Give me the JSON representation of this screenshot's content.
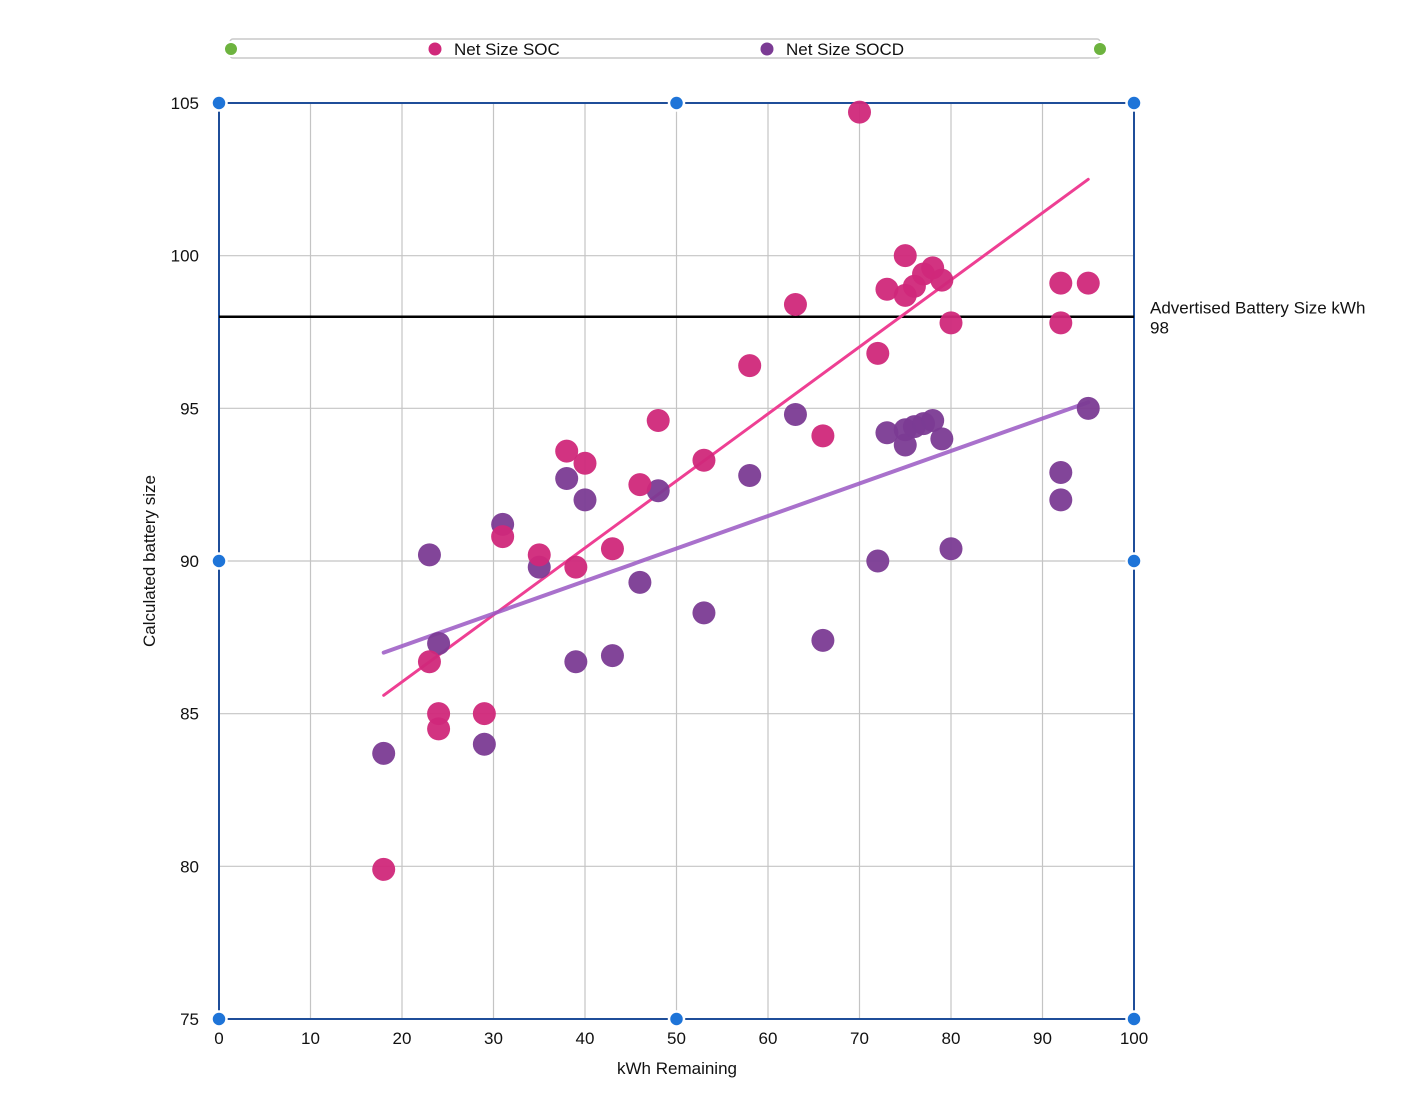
{
  "legend": {
    "items": [
      {
        "label": "Net Size SOC",
        "color": "#d0287a"
      },
      {
        "label": "Net Size SOCD",
        "color": "#7b3b94"
      }
    ],
    "handle_color": "#6db33f"
  },
  "selection_handle_color": "#1e74d8",
  "chart_data": {
    "type": "scatter",
    "title": "",
    "xlabel": "kWh Remaining",
    "ylabel": "Calculated battery size",
    "xlim": [
      0,
      100
    ],
    "ylim": [
      75,
      105
    ],
    "xticks": [
      0,
      10,
      20,
      30,
      40,
      50,
      60,
      70,
      80,
      90,
      100
    ],
    "yticks": [
      75,
      80,
      85,
      90,
      95,
      100,
      105
    ],
    "grid": "vertical-and-horizontal",
    "legend_position": "top",
    "series": [
      {
        "name": "Net Size SOC",
        "color": "#d0287a",
        "points": [
          [
            18,
            79.9
          ],
          [
            23,
            86.7
          ],
          [
            24,
            85.0
          ],
          [
            24,
            84.5
          ],
          [
            29,
            85.0
          ],
          [
            31,
            90.8
          ],
          [
            35,
            90.2
          ],
          [
            38,
            93.6
          ],
          [
            39,
            89.8
          ],
          [
            40,
            93.2
          ],
          [
            43,
            90.4
          ],
          [
            46,
            92.5
          ],
          [
            48,
            94.6
          ],
          [
            53,
            93.3
          ],
          [
            58,
            96.4
          ],
          [
            63,
            98.4
          ],
          [
            66,
            94.1
          ],
          [
            70,
            104.7
          ],
          [
            72,
            96.8
          ],
          [
            73,
            98.9
          ],
          [
            75,
            100.0
          ],
          [
            75,
            98.7
          ],
          [
            76,
            99.0
          ],
          [
            77,
            99.4
          ],
          [
            78,
            99.6
          ],
          [
            79,
            99.2
          ],
          [
            80,
            97.8
          ],
          [
            92,
            99.1
          ],
          [
            92,
            97.8
          ],
          [
            95,
            99.1
          ]
        ],
        "trendline": {
          "x": [
            18,
            95
          ],
          "y": [
            85.6,
            102.5
          ],
          "color": "#ee3f93"
        }
      },
      {
        "name": "Net Size SOCD",
        "color": "#7b3b94",
        "points": [
          [
            18,
            83.7
          ],
          [
            23,
            90.2
          ],
          [
            24,
            87.3
          ],
          [
            29,
            84.0
          ],
          [
            31,
            91.2
          ],
          [
            35,
            89.8
          ],
          [
            38,
            92.7
          ],
          [
            39,
            86.7
          ],
          [
            40,
            92.0
          ],
          [
            43,
            86.9
          ],
          [
            46,
            89.3
          ],
          [
            48,
            92.3
          ],
          [
            53,
            88.3
          ],
          [
            58,
            92.8
          ],
          [
            63,
            94.8
          ],
          [
            66,
            87.4
          ],
          [
            72,
            90.0
          ],
          [
            73,
            94.2
          ],
          [
            75,
            94.3
          ],
          [
            75,
            93.8
          ],
          [
            76,
            94.4
          ],
          [
            77,
            94.5
          ],
          [
            78,
            94.6
          ],
          [
            79,
            94.0
          ],
          [
            80,
            90.4
          ],
          [
            92,
            92.9
          ],
          [
            92,
            92.0
          ],
          [
            95,
            95.0
          ]
        ],
        "trendline": {
          "x": [
            18,
            95
          ],
          "y": [
            87.0,
            95.2
          ],
          "color": "#9b59c4"
        }
      }
    ],
    "reference_line": {
      "y": 98,
      "color": "#000000",
      "label": "Advertised Battery Size kWh",
      "value_label": "98"
    }
  }
}
